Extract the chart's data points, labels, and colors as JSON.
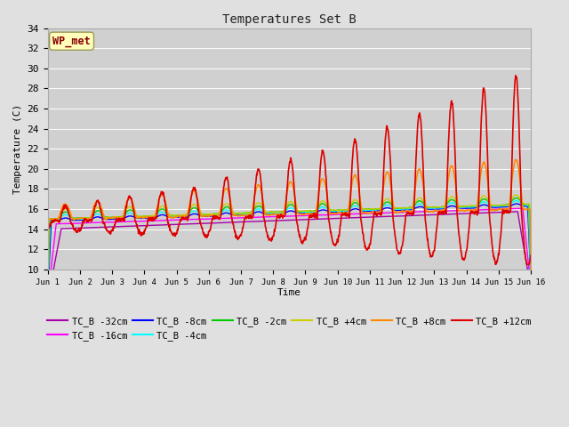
{
  "title": "Temperatures Set B",
  "xlabel": "Time",
  "ylabel": "Temperature (C)",
  "ylim": [
    10,
    34
  ],
  "xlim": [
    0,
    15
  ],
  "fig_bg": "#e0e0e0",
  "plot_bg": "#d0d0d0",
  "grid_color": "#ffffff",
  "xtick_labels": [
    "Jun 1",
    "Jun 2",
    "Jun 3",
    "Jun 4",
    "Jun 5",
    "Jun 6",
    "Jun 7",
    "Jun 8",
    "Jun 9",
    "Jun 10",
    "Jun 11",
    "Jun 12",
    "Jun 13",
    "Jun 14",
    "Jun 15",
    "Jun 16"
  ],
  "ytick_vals": [
    10,
    12,
    14,
    16,
    18,
    20,
    22,
    24,
    26,
    28,
    30,
    32,
    34
  ],
  "series_order": [
    "TC_B -32cm",
    "TC_B -16cm",
    "TC_B -8cm",
    "TC_B -4cm",
    "TC_B -2cm",
    "TC_B +4cm",
    "TC_B +8cm",
    "TC_B +12cm"
  ],
  "colors": {
    "TC_B -32cm": "#aa00aa",
    "TC_B -16cm": "#ff00ff",
    "TC_B -8cm": "#0000ff",
    "TC_B -4cm": "#00ffff",
    "TC_B -2cm": "#00cc00",
    "TC_B +4cm": "#cccc00",
    "TC_B +8cm": "#ff8800",
    "TC_B +12cm": "#dd0000"
  },
  "wp_met_box_color": "#ffffbb",
  "wp_met_text_color": "#880000",
  "wp_met_edge_color": "#999955"
}
